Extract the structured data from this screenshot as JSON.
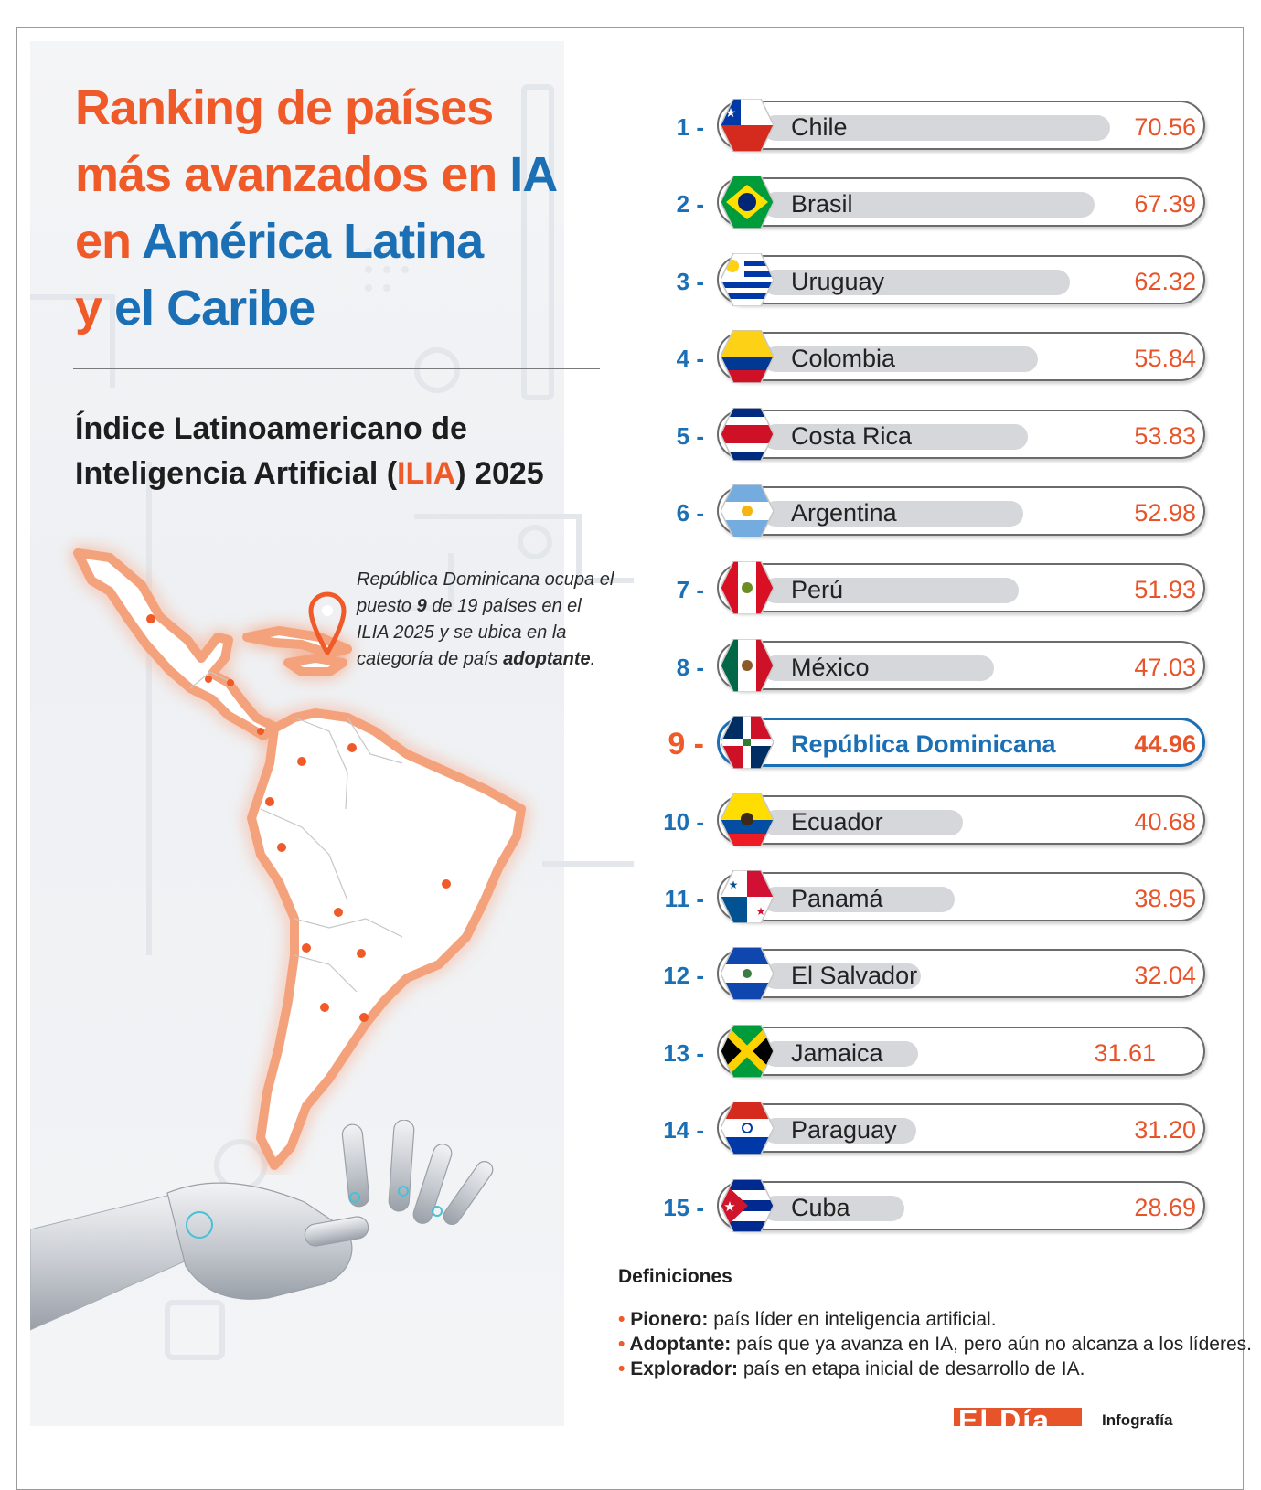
{
  "header": {
    "title_line1": "Ranking de países",
    "title_line2_a": "más avanzados en ",
    "title_line2_b": "IA",
    "title_line3_a": "en ",
    "title_line3_b": "América Latina",
    "title_line4_a": "y ",
    "title_line4_b": "el Caribe",
    "subtitle_line1": "Índice Latinoamericano de",
    "subtitle_line2_a": "Inteligencia Artificial (",
    "subtitle_line2_b": "ILIA",
    "subtitle_line2_c": ") 2025"
  },
  "note": {
    "part1": "República Dominicana ocupa el puesto ",
    "rank": "9",
    "part2": " de 19 países en el ILIA 2025 y se ubica en la categoría de país ",
    "category": "adoptante",
    "end": "."
  },
  "chart_data": {
    "type": "bar",
    "orientation": "horizontal",
    "highlight": "República Dominicana",
    "xlim": [
      0,
      80
    ],
    "rows": [
      {
        "rank": "1 -",
        "country": "Chile",
        "value": 70.56,
        "display": "70.56",
        "flag": "chile-flag"
      },
      {
        "rank": "2 -",
        "country": "Brasil",
        "value": 67.39,
        "display": "67.39",
        "flag": "brazil-flag"
      },
      {
        "rank": "3 -",
        "country": "Uruguay",
        "value": 62.32,
        "display": "62.32",
        "flag": "uruguay-flag"
      },
      {
        "rank": "4 -",
        "country": "Colombia",
        "value": 55.84,
        "display": "55.84",
        "flag": "colombia-flag"
      },
      {
        "rank": "5 -",
        "country": "Costa Rica",
        "value": 53.83,
        "display": "53.83",
        "flag": "costa-rica-flag"
      },
      {
        "rank": "6 -",
        "country": "Argentina",
        "value": 52.98,
        "display": "52.98",
        "flag": "argentina-flag"
      },
      {
        "rank": "7 -",
        "country": "Perú",
        "value": 51.93,
        "display": "51.93",
        "flag": "peru-flag"
      },
      {
        "rank": "8 -",
        "country": "México",
        "value": 47.03,
        "display": "47.03",
        "flag": "mexico-flag"
      },
      {
        "rank": "9 -",
        "country": "República Dominicana",
        "value": 44.96,
        "display": "44.96",
        "flag": "dominican-republic-flag"
      },
      {
        "rank": "10 -",
        "country": "Ecuador",
        "value": 40.68,
        "display": "40.68",
        "flag": "ecuador-flag"
      },
      {
        "rank": "11 -",
        "country": "Panamá",
        "value": 38.95,
        "display": "38.95",
        "flag": "panama-flag"
      },
      {
        "rank": "12 -",
        "country": "El Salvador",
        "value": 32.04,
        "display": "32.04",
        "flag": "el-salvador-flag"
      },
      {
        "rank": "13 -",
        "country": "Jamaica",
        "value": 31.61,
        "display": "31.61",
        "flag": "jamaica-flag"
      },
      {
        "rank": "14 -",
        "country": "Paraguay",
        "value": 31.2,
        "display": "31.20",
        "flag": "paraguay-flag"
      },
      {
        "rank": "15 -",
        "country": "Cuba",
        "value": 28.69,
        "display": "28.69",
        "flag": "cuba-flag"
      }
    ]
  },
  "definitions": {
    "title": "Definiciones",
    "items": [
      {
        "term": "Pionero:",
        "text": " país líder en inteligencia artificial."
      },
      {
        "term": "Adoptante:",
        "text": " país que ya avanza en IA, pero aún no alcanza a los líderes."
      },
      {
        "term": "Explorador:",
        "text": " país en etapa inicial de desarrollo de IA."
      }
    ]
  },
  "footer": {
    "logo": "El Día",
    "credit": "Infografía"
  },
  "colors": {
    "accent_orange": "#f05a28",
    "accent_blue": "#1a6fb5",
    "bar_gray": "#d6d7da"
  }
}
